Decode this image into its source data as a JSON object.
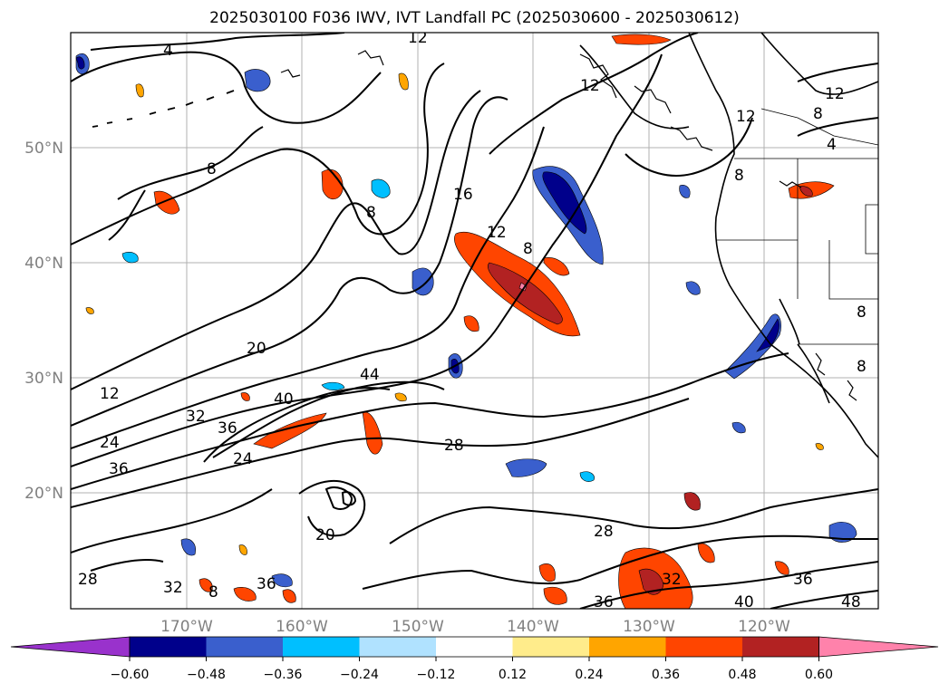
{
  "title": "2025030100 F036 IWV, IVT Landfall PC (2025030600 - 2025030612)",
  "lat_labels": [
    "50°N",
    "40°N",
    "30°N",
    "20°N"
  ],
  "lon_labels": [
    "170°W",
    "160°W",
    "150°W",
    "140°W",
    "130°W",
    "120°W"
  ],
  "colorbar": {
    "colors": [
      "#9932CC",
      "#00008B",
      "#3A5FCD",
      "#00BFFF",
      "#B0E2FF",
      "#FFFFFF",
      "#FFEC8B",
      "#FFA500",
      "#FF4500",
      "#B22222",
      "#FF82AB"
    ],
    "ticks": [
      "−0.60",
      "−0.48",
      "−0.36",
      "−0.24",
      "−0.12",
      "0.12",
      "0.24",
      "0.36",
      "0.48",
      "0.60"
    ]
  },
  "contour_labels": [
    "4",
    "12",
    "12",
    "8",
    "12",
    "8",
    "4",
    "16",
    "12",
    "8",
    "8",
    "8",
    "12",
    "20",
    "12",
    "32",
    "44",
    "40",
    "36",
    "24",
    "36",
    "24",
    "28",
    "20",
    "28",
    "28",
    "32",
    "8",
    "36",
    "32",
    "36",
    "40",
    "48",
    "8",
    "8"
  ]
}
